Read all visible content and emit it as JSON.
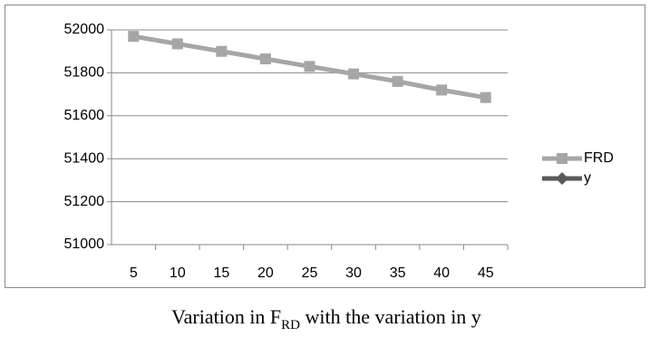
{
  "chart_data": {
    "type": "line",
    "categories": [
      "5",
      "10",
      "15",
      "20",
      "25",
      "30",
      "35",
      "40",
      "45"
    ],
    "series": [
      {
        "name": "FRD",
        "color": "#a6a6a6",
        "values": [
          51970,
          51935,
          51900,
          51865,
          51830,
          51795,
          51760,
          51720,
          51685
        ]
      },
      {
        "name": "y",
        "color": "#595959",
        "values": [
          null,
          null,
          null,
          null,
          null,
          null,
          null,
          null,
          null
        ]
      }
    ],
    "ylim": [
      51000,
      52000
    ],
    "yticks": [
      51000,
      51200,
      51400,
      51600,
      51800,
      52000
    ],
    "grid": true,
    "legend": "right",
    "caption": [
      "Variation in F",
      "RD",
      " with the variation in y"
    ]
  }
}
